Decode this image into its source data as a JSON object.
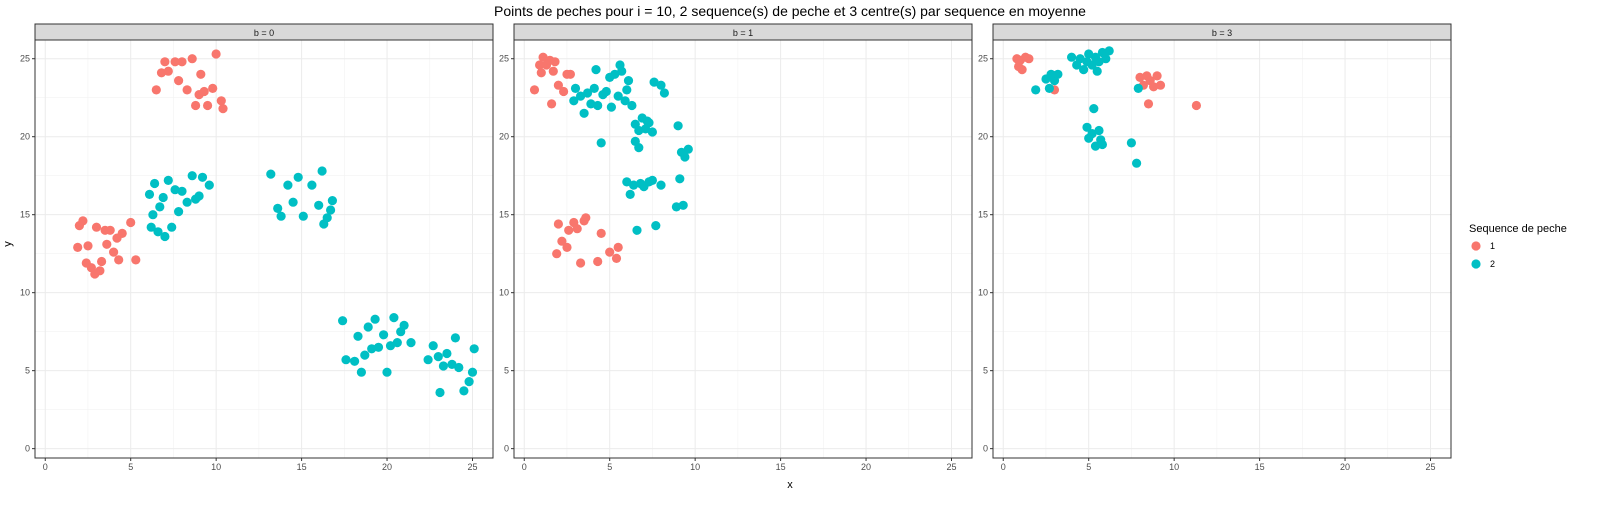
{
  "chart_data": {
    "type": "scatter",
    "title": "Points de peches pour i = 10, 2 sequence(s) de peche et 3 centre(s) par sequence en moyenne",
    "xlabel": "x",
    "ylabel": "y",
    "xlim": [
      -0.6,
      26.2
    ],
    "ylim": [
      -0.6,
      26.2
    ],
    "x_ticks": [
      0,
      5,
      10,
      15,
      20,
      25
    ],
    "y_ticks": [
      0,
      5,
      10,
      15,
      20,
      25
    ],
    "grid": true,
    "legend": {
      "title": "Sequence de peche",
      "placement": "right",
      "entries": [
        {
          "label": "1",
          "color": "#F8766D"
        },
        {
          "label": "2",
          "color": "#00BFC4"
        }
      ]
    },
    "series_colors": {
      "1": "#F8766D",
      "2": "#00BFC4"
    },
    "panels": [
      {
        "label": "b = 0",
        "points": {
          "1": [
            [
              6.5,
              23.0
            ],
            [
              6.8,
              24.1
            ],
            [
              7.0,
              24.8
            ],
            [
              7.2,
              24.2
            ],
            [
              7.6,
              24.8
            ],
            [
              7.8,
              23.6
            ],
            [
              8.0,
              24.8
            ],
            [
              8.3,
              23.0
            ],
            [
              8.6,
              25.0
            ],
            [
              8.8,
              22.0
            ],
            [
              9.0,
              22.7
            ],
            [
              9.1,
              24.0
            ],
            [
              9.3,
              22.9
            ],
            [
              9.5,
              22.0
            ],
            [
              9.8,
              23.1
            ],
            [
              10.0,
              25.3
            ],
            [
              10.3,
              22.3
            ],
            [
              10.4,
              21.8
            ],
            [
              1.9,
              12.9
            ],
            [
              2.0,
              14.3
            ],
            [
              2.2,
              14.6
            ],
            [
              2.4,
              11.9
            ],
            [
              2.5,
              13.0
            ],
            [
              2.7,
              11.6
            ],
            [
              2.9,
              11.2
            ],
            [
              3.0,
              14.2
            ],
            [
              3.2,
              11.4
            ],
            [
              3.3,
              12.0
            ],
            [
              3.5,
              14.0
            ],
            [
              3.6,
              13.1
            ],
            [
              3.8,
              14.0
            ],
            [
              4.0,
              12.6
            ],
            [
              4.2,
              13.5
            ],
            [
              4.3,
              12.1
            ],
            [
              4.5,
              13.8
            ],
            [
              5.0,
              14.5
            ],
            [
              5.3,
              12.1
            ]
          ],
          "2": [
            [
              6.1,
              16.3
            ],
            [
              6.2,
              14.2
            ],
            [
              6.3,
              15.0
            ],
            [
              6.4,
              17.0
            ],
            [
              6.6,
              13.9
            ],
            [
              6.7,
              15.5
            ],
            [
              6.9,
              16.1
            ],
            [
              7.0,
              13.6
            ],
            [
              7.2,
              17.2
            ],
            [
              7.4,
              14.2
            ],
            [
              7.6,
              16.6
            ],
            [
              7.8,
              15.2
            ],
            [
              8.0,
              16.5
            ],
            [
              8.3,
              15.8
            ],
            [
              8.6,
              17.5
            ],
            [
              8.8,
              16.0
            ],
            [
              9.0,
              16.2
            ],
            [
              9.2,
              17.4
            ],
            [
              9.6,
              16.9
            ],
            [
              13.2,
              17.6
            ],
            [
              13.6,
              15.4
            ],
            [
              13.8,
              14.9
            ],
            [
              14.2,
              16.9
            ],
            [
              14.5,
              15.8
            ],
            [
              14.8,
              17.4
            ],
            [
              15.1,
              14.9
            ],
            [
              15.6,
              16.9
            ],
            [
              16.0,
              15.6
            ],
            [
              16.2,
              17.8
            ],
            [
              16.3,
              14.4
            ],
            [
              16.5,
              14.8
            ],
            [
              16.7,
              15.3
            ],
            [
              16.8,
              15.9
            ],
            [
              17.4,
              8.2
            ],
            [
              17.6,
              5.7
            ],
            [
              18.1,
              5.6
            ],
            [
              18.3,
              7.2
            ],
            [
              18.5,
              4.9
            ],
            [
              18.7,
              6.0
            ],
            [
              18.9,
              7.8
            ],
            [
              19.1,
              6.4
            ],
            [
              19.3,
              8.3
            ],
            [
              19.5,
              6.5
            ],
            [
              19.8,
              7.3
            ],
            [
              20.0,
              4.9
            ],
            [
              20.2,
              6.6
            ],
            [
              20.4,
              8.4
            ],
            [
              20.6,
              6.8
            ],
            [
              20.8,
              7.5
            ],
            [
              21.0,
              7.9
            ],
            [
              21.4,
              6.8
            ],
            [
              22.4,
              5.7
            ],
            [
              22.7,
              6.6
            ],
            [
              23.0,
              5.9
            ],
            [
              23.1,
              3.6
            ],
            [
              23.3,
              5.3
            ],
            [
              23.5,
              6.1
            ],
            [
              23.8,
              5.4
            ],
            [
              24.0,
              7.1
            ],
            [
              24.2,
              5.2
            ],
            [
              24.5,
              3.7
            ],
            [
              24.8,
              4.3
            ],
            [
              25.0,
              4.9
            ],
            [
              25.1,
              6.4
            ]
          ]
        }
      },
      {
        "label": "b = 1",
        "points": {
          "1": [
            [
              0.6,
              23.0
            ],
            [
              0.9,
              24.6
            ],
            [
              1.0,
              24.1
            ],
            [
              1.1,
              25.1
            ],
            [
              1.3,
              24.6
            ],
            [
              1.5,
              24.9
            ],
            [
              1.6,
              22.1
            ],
            [
              1.7,
              24.2
            ],
            [
              1.8,
              24.8
            ],
            [
              2.0,
              23.3
            ],
            [
              2.3,
              22.9
            ],
            [
              2.5,
              24.0
            ],
            [
              2.7,
              24.0
            ],
            [
              1.9,
              12.5
            ],
            [
              2.0,
              14.4
            ],
            [
              2.2,
              13.3
            ],
            [
              2.5,
              12.9
            ],
            [
              2.6,
              14.0
            ],
            [
              2.9,
              14.5
            ],
            [
              3.1,
              14.1
            ],
            [
              3.3,
              11.9
            ],
            [
              3.5,
              14.6
            ],
            [
              3.6,
              14.8
            ],
            [
              4.3,
              12.0
            ],
            [
              4.5,
              13.8
            ],
            [
              5.0,
              12.6
            ],
            [
              5.4,
              12.2
            ],
            [
              5.5,
              12.9
            ]
          ],
          "2": [
            [
              2.9,
              22.3
            ],
            [
              3.0,
              23.1
            ],
            [
              3.3,
              22.6
            ],
            [
              3.5,
              21.5
            ],
            [
              3.7,
              22.8
            ],
            [
              3.9,
              22.1
            ],
            [
              4.1,
              23.1
            ],
            [
              4.3,
              22.0
            ],
            [
              4.5,
              19.6
            ],
            [
              4.6,
              22.7
            ],
            [
              4.8,
              22.9
            ],
            [
              5.0,
              23.8
            ],
            [
              5.1,
              21.9
            ],
            [
              5.3,
              24.0
            ],
            [
              5.5,
              22.6
            ],
            [
              5.7,
              24.2
            ],
            [
              5.9,
              22.3
            ],
            [
              6.1,
              23.6
            ],
            [
              6.3,
              22.0
            ],
            [
              6.5,
              20.8
            ],
            [
              6.7,
              20.4
            ],
            [
              6.9,
              21.2
            ],
            [
              7.1,
              20.5
            ],
            [
              7.3,
              20.9
            ],
            [
              7.5,
              20.3
            ],
            [
              7.6,
              23.5
            ],
            [
              8.0,
              23.3
            ],
            [
              8.2,
              22.8
            ],
            [
              9.0,
              20.7
            ],
            [
              9.2,
              19.0
            ],
            [
              9.4,
              18.7
            ],
            [
              9.6,
              19.2
            ],
            [
              6.0,
              17.1
            ],
            [
              6.2,
              16.3
            ],
            [
              6.4,
              16.9
            ],
            [
              6.6,
              14.0
            ],
            [
              6.8,
              17.0
            ],
            [
              7.0,
              16.8
            ],
            [
              7.3,
              17.1
            ],
            [
              7.5,
              17.2
            ],
            [
              7.7,
              14.3
            ],
            [
              8.0,
              16.9
            ],
            [
              8.9,
              15.5
            ],
            [
              9.1,
              17.3
            ],
            [
              9.3,
              15.6
            ],
            [
              6.5,
              19.7
            ],
            [
              4.2,
              24.3
            ],
            [
              5.6,
              24.6
            ],
            [
              6.0,
              23.0
            ],
            [
              7.2,
              21.0
            ],
            [
              6.7,
              19.3
            ]
          ]
        }
      },
      {
        "label": "b = 3",
        "points": {
          "1": [
            [
              0.8,
              25.0
            ],
            [
              0.9,
              24.5
            ],
            [
              1.0,
              24.9
            ],
            [
              1.1,
              24.3
            ],
            [
              1.3,
              25.1
            ],
            [
              1.5,
              25.0
            ],
            [
              3.0,
              23.0
            ],
            [
              8.0,
              23.8
            ],
            [
              8.2,
              23.3
            ],
            [
              8.4,
              23.9
            ],
            [
              8.5,
              22.1
            ],
            [
              8.6,
              23.6
            ],
            [
              8.8,
              23.2
            ],
            [
              9.0,
              23.9
            ],
            [
              9.2,
              23.3
            ],
            [
              11.3,
              22.0
            ]
          ],
          "2": [
            [
              1.9,
              23.0
            ],
            [
              2.5,
              23.7
            ],
            [
              2.7,
              23.1
            ],
            [
              3.0,
              23.6
            ],
            [
              3.2,
              24.0
            ],
            [
              4.0,
              25.1
            ],
            [
              4.3,
              24.6
            ],
            [
              4.5,
              25.0
            ],
            [
              4.7,
              24.3
            ],
            [
              4.9,
              24.8
            ],
            [
              5.0,
              25.3
            ],
            [
              5.2,
              24.6
            ],
            [
              5.4,
              25.1
            ],
            [
              5.6,
              24.8
            ],
            [
              5.8,
              25.4
            ],
            [
              6.0,
              25.0
            ],
            [
              6.2,
              25.5
            ],
            [
              4.9,
              20.6
            ],
            [
              5.0,
              19.9
            ],
            [
              5.2,
              20.2
            ],
            [
              5.3,
              21.8
            ],
            [
              5.4,
              19.4
            ],
            [
              5.6,
              20.4
            ],
            [
              5.7,
              19.8
            ],
            [
              5.8,
              19.5
            ],
            [
              7.5,
              19.6
            ],
            [
              7.8,
              18.3
            ],
            [
              7.9,
              23.1
            ],
            [
              2.8,
              24.0
            ],
            [
              5.5,
              24.2
            ]
          ]
        }
      }
    ]
  }
}
